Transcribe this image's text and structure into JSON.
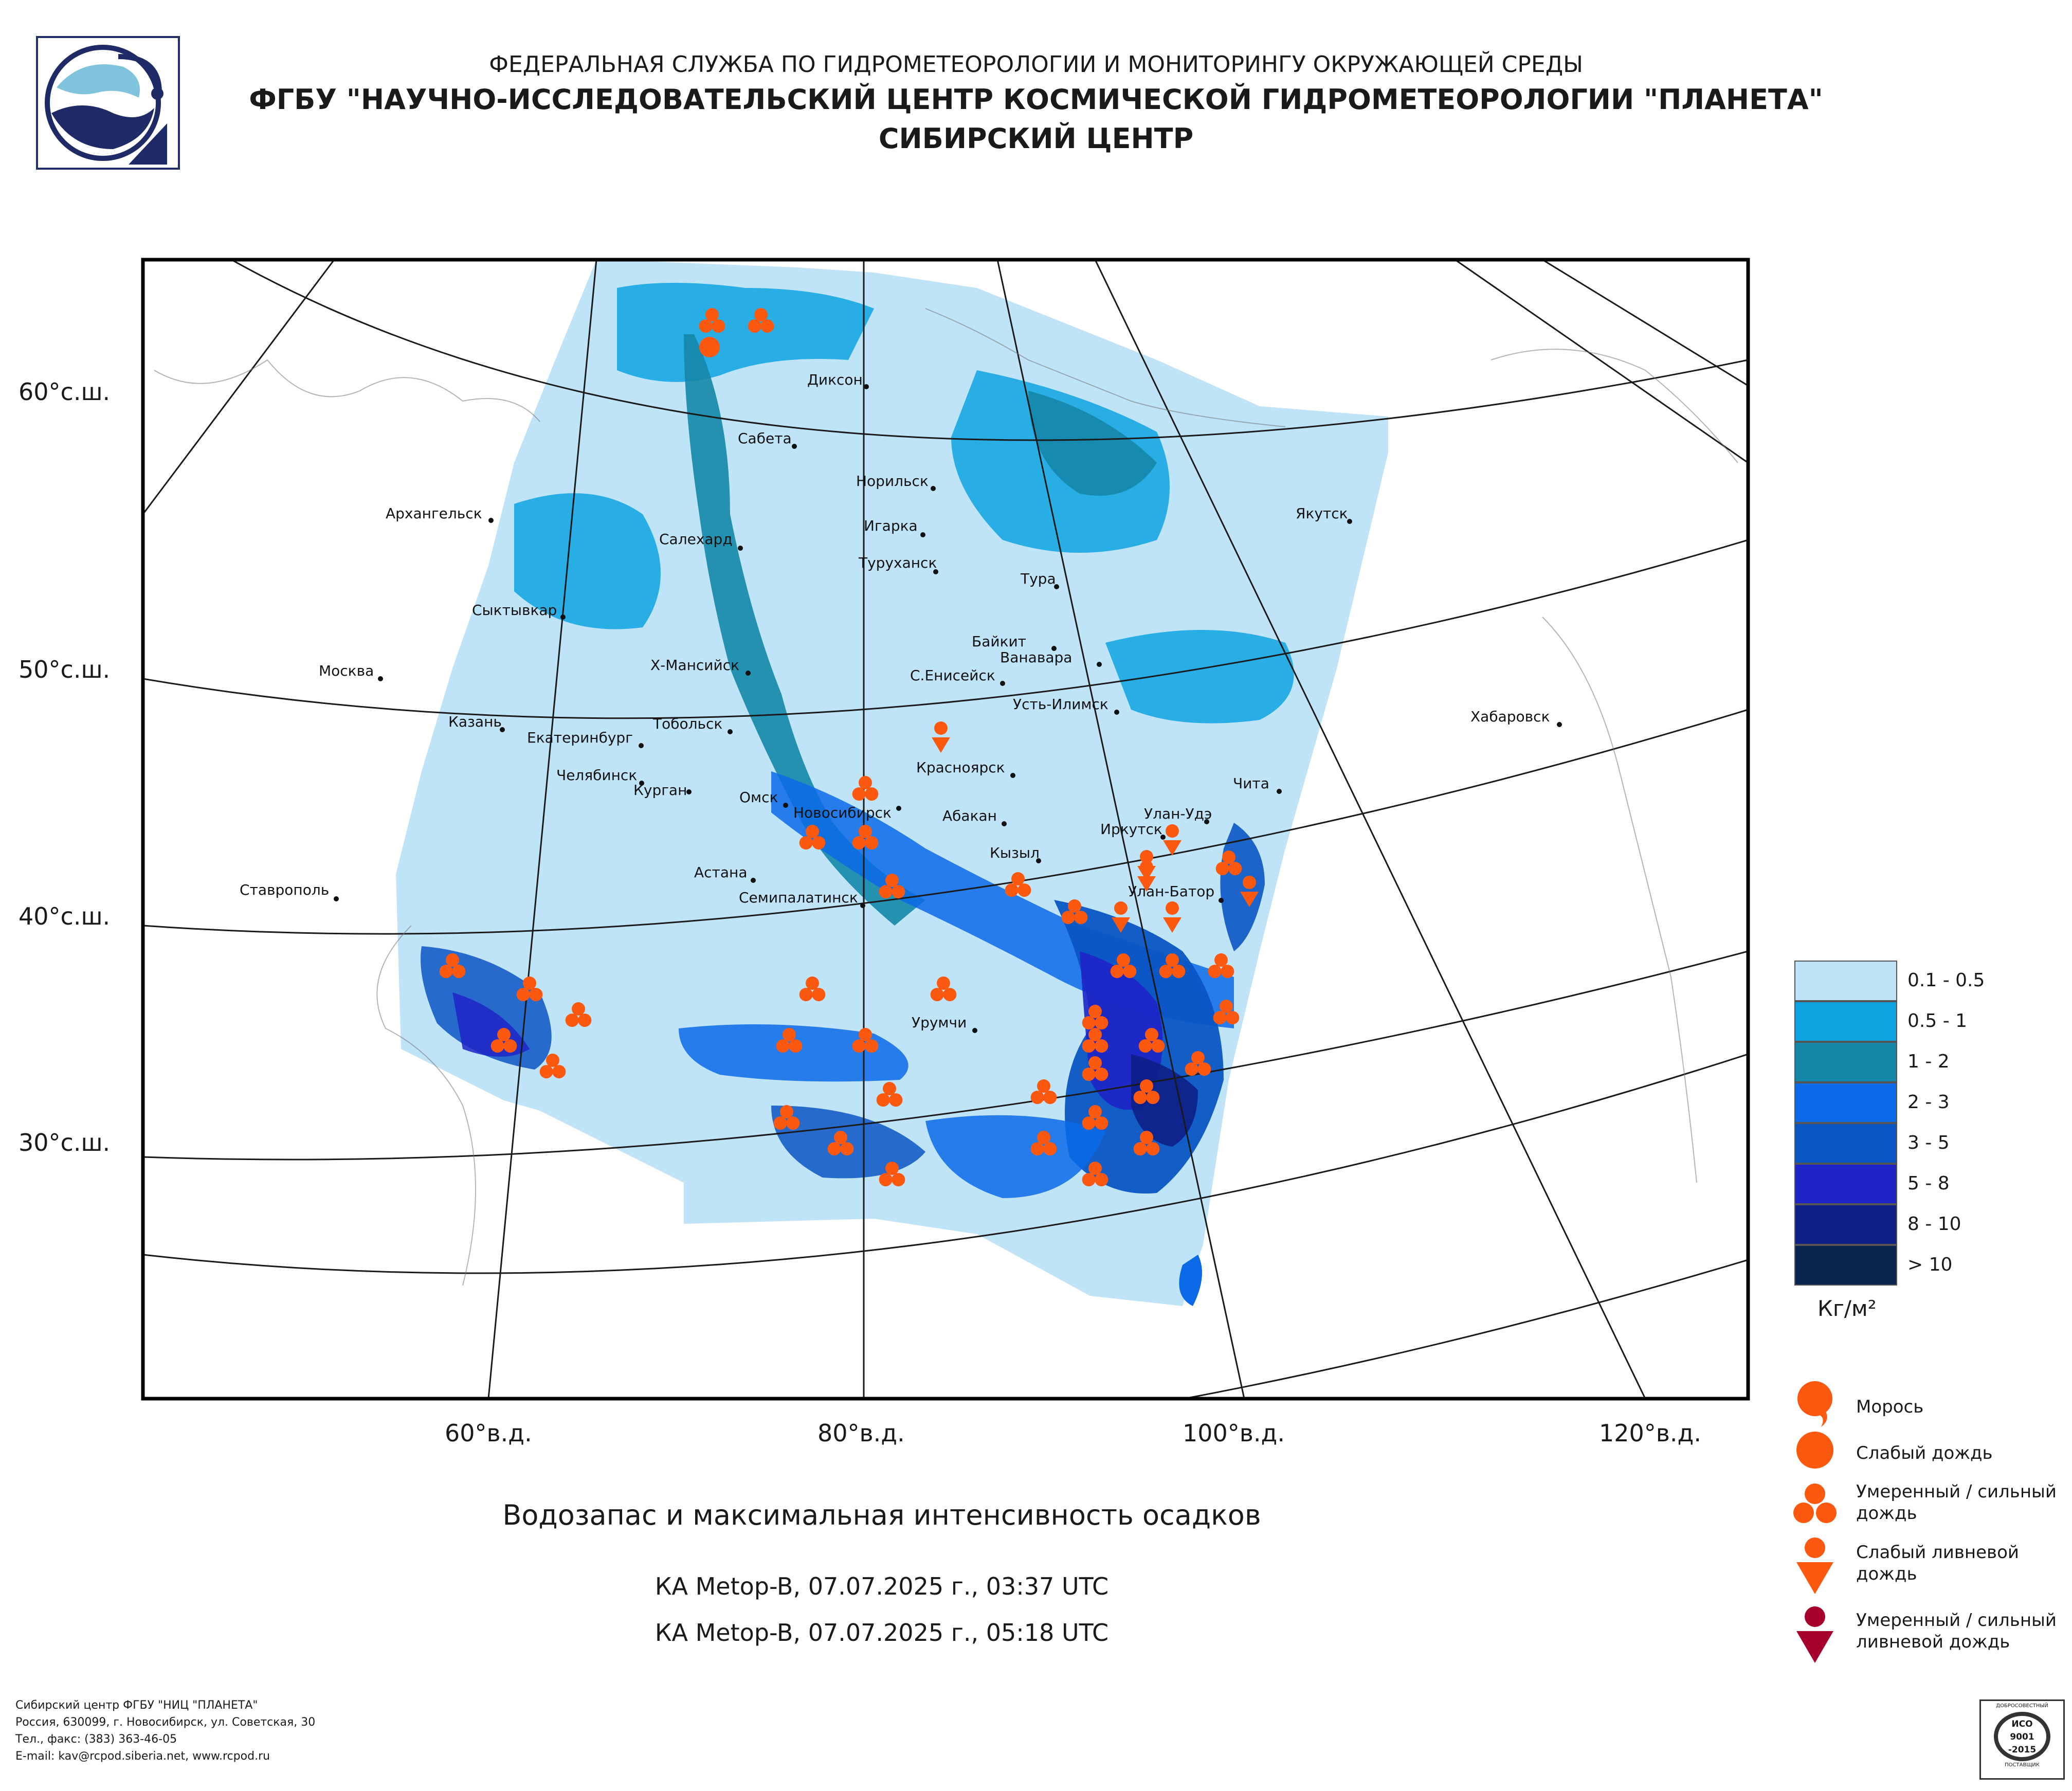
{
  "header": {
    "line1": "ФЕДЕРАЛЬНАЯ СЛУЖБА ПО ГИДРОМЕТЕОРОЛОГИИ И МОНИТОРИНГУ ОКРУЖАЮЩЕЙ СРЕДЫ",
    "line2": "ФГБУ \"НАУЧНО-ИССЛЕДОВАТЕЛЬСКИЙ ЦЕНТР КОСМИЧЕСКОЙ ГИДРОМЕТЕОРОЛОГИИ \"ПЛАНЕТА\"",
    "line3": "СИБИРСКИЙ ЦЕНТР"
  },
  "map": {
    "lat_labels": [
      "60°с.ш.",
      "50°с.ш.",
      "40°с.ш.",
      "30°с.ш."
    ],
    "lon_labels": [
      "60°в.д.",
      "80°в.д.",
      "100°в.д.",
      "120°в.д."
    ],
    "cities": [
      "Диксон",
      "Сабета",
      "Норильск",
      "Игарка",
      "Туруханск",
      "Салехард",
      "Архангельск",
      "Якутск",
      "Тура",
      "Сыктывкар",
      "Байкит",
      "Ванавара",
      "Х-Мансийск",
      "С.Енисейск",
      "Москва",
      "Усть-Илимск",
      "Казань",
      "Екатеринбург",
      "Тобольск",
      "Хабаровск",
      "Челябинск",
      "Курган",
      "Красноярск",
      "Омск",
      "Новосибирск",
      "Чита",
      "Абакан",
      "Улан-Удэ",
      "Иркутск",
      "Кызыл",
      "Ставрополь",
      "Астана",
      "Семипалатинск",
      "Улан-Батор",
      "Урумчи"
    ]
  },
  "legend": {
    "scale": [
      {
        "label": "0.1 - 0.5",
        "color": "#bfe3f7"
      },
      {
        "label": "0.5 - 1",
        "color": "#0da3e0"
      },
      {
        "label": "1 - 2",
        "color": "#1487a8"
      },
      {
        "label": "2 - 3",
        "color": "#0a6ae8"
      },
      {
        "label": "3 - 5",
        "color": "#0a55c4"
      },
      {
        "label": "5 - 8",
        "color": "#1e24c6"
      },
      {
        "label": "8 - 10",
        "color": "#0e1f86"
      },
      {
        "label": "> 10",
        "color": "#0a2550"
      }
    ],
    "unit": "Кг/м²",
    "symbols": [
      {
        "label": "Морось",
        "icon": "drizzle-icon"
      },
      {
        "label": "Слабый дождь",
        "icon": "light-rain-icon"
      },
      {
        "label": "Умеренный / сильный дождь",
        "icon": "moderate-rain-icon"
      },
      {
        "label": "Слабый ливневой дождь",
        "icon": "light-shower-icon"
      },
      {
        "label": "Умеренный / сильный ливневой дождь",
        "icon": "heavy-shower-icon"
      }
    ]
  },
  "caption": {
    "title": "Водозапас и максимальная интенсивность осадков",
    "pass1": "КА Metop-B, 07.07.2025 г., 03:37 UTC",
    "pass2": "КА Metop-B, 07.07.2025 г., 05:18 UTC"
  },
  "footer": {
    "line1": "Сибирский центр ФГБУ \"НИЦ \"ПЛАНЕТА\"",
    "line2": "Россия, 630099, г. Новосибирск, ул. Советская, 30",
    "line3": "Тел., факс: (383) 363-46-05",
    "line4": "E-mail: kav@rcpod.siberia.net, www.rcpod.ru"
  },
  "badge": {
    "top": "ДОБРОСОВЕСТНЫЙ",
    "iso1": "ИСО",
    "iso2": "9001",
    "iso3": "-2015",
    "bottom": "ПОСТАВЩИК"
  },
  "colors": {
    "marker": "#fb5810",
    "heavy_shower": "#a8002c",
    "frame": "#000000"
  }
}
